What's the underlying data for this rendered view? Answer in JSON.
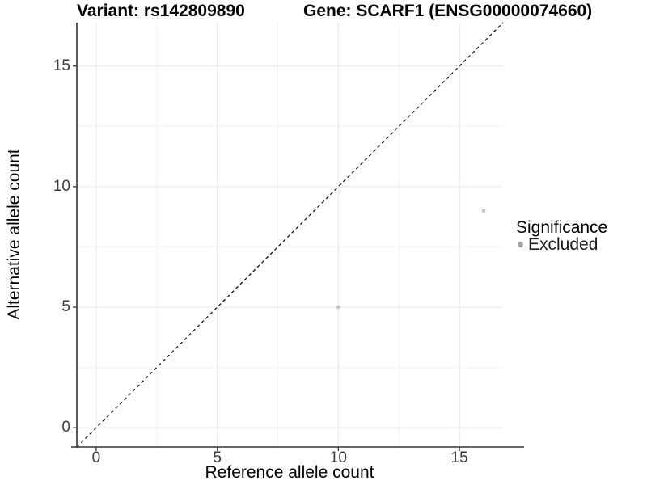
{
  "chart_data": {
    "type": "scatter",
    "title_left": "Variant: rs142809890",
    "title_right": "Gene: SCARF1 (ENSG00000074660)",
    "xlabel": "Reference allele count",
    "ylabel": "Alternative allele count",
    "xlim": [
      -0.8,
      16.8
    ],
    "ylim": [
      -0.8,
      16.8
    ],
    "x_ticks": [
      0,
      5,
      10,
      15
    ],
    "y_ticks": [
      0,
      5,
      10,
      15
    ],
    "x_minor_gridlines": [
      2.5,
      7.5,
      12.5
    ],
    "y_minor_gridlines": [
      2.5,
      7.5,
      12.5
    ],
    "grid": "major and minor gridlines, light gray on white panel",
    "reference_line": {
      "kind": "identity y=x",
      "style": "dashed",
      "color": "#000000"
    },
    "series": [
      {
        "name": "Excluded",
        "marker": "circle",
        "color": "#c4c4c4",
        "points": [
          [
            10,
            5
          ],
          [
            16,
            9
          ]
        ]
      }
    ],
    "legend": {
      "position": "right",
      "title": "Significance",
      "items": [
        {
          "label": "Excluded",
          "key_color": "#a3a3a3"
        }
      ]
    },
    "style_colors": {
      "axis_line": "#333333",
      "tick_label": "#3a3a3a",
      "major_grid": "#e7e7e7",
      "minor_grid": "#f3f3f3"
    }
  }
}
